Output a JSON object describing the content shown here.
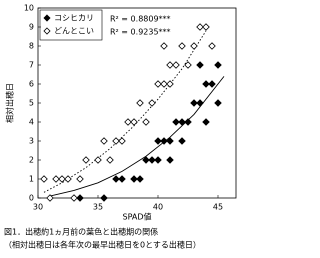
{
  "chart_data": {
    "type": "scatter",
    "y_label": "相対出穂日",
    "x_label": "SPAD値",
    "caption": [
      "図1．出穂約1ヵ月前の葉色と出穂期の関係",
      "（相対出穂日は各年次の最早出穂日を0とする出穂日）"
    ],
    "annotations": [
      "R² = 0.8809***",
      "R² = 0.9235***"
    ],
    "xlim": [
      30,
      46.5
    ],
    "xticks": [
      30,
      35,
      40,
      45
    ],
    "ylim": [
      0,
      10
    ],
    "yticks": [
      0,
      1,
      2,
      3,
      4,
      5,
      6,
      7,
      8,
      9,
      10
    ],
    "series": [
      {
        "name": "コシヒカリ",
        "color": "#000000",
        "marker": "filled-diamond",
        "x": [
          33.5,
          35.5,
          36.5,
          37,
          38,
          38.5,
          39,
          39.5,
          40,
          40.5,
          41,
          41.5,
          42,
          42,
          42.5,
          43,
          43.5,
          44,
          44,
          44.5,
          45,
          45,
          43.5,
          40,
          41
        ],
        "values": [
          0,
          0,
          1,
          1,
          1,
          1,
          2,
          2,
          3,
          3,
          3,
          4,
          3,
          4,
          4,
          5,
          5,
          4,
          6,
          6,
          5,
          7,
          7,
          2,
          2
        ],
        "fit": {
          "x": [
            31,
            33,
            35,
            37,
            39,
            41,
            43,
            45.5
          ],
          "values": [
            0.1,
            0.4,
            0.8,
            1.4,
            2.2,
            3.2,
            4.4,
            6.4
          ]
        }
      },
      {
        "name": "どんとこい",
        "color": "#000000",
        "marker": "open-diamond",
        "x": [
          30.5,
          31,
          31.5,
          32,
          32.5,
          33,
          33.5,
          34,
          35,
          35.5,
          36,
          36.5,
          37,
          37.5,
          38,
          38.5,
          39,
          39.5,
          40,
          40.5,
          41,
          41,
          41.5,
          42,
          42.5,
          43,
          43.5,
          44,
          44.5,
          40.5
        ],
        "values": [
          1,
          0,
          1,
          1,
          1,
          0,
          1,
          2,
          2,
          3,
          2,
          3,
          3,
          4,
          4,
          5,
          4,
          5,
          6,
          6,
          6,
          7,
          7,
          8,
          7,
          8,
          9,
          9,
          8,
          8
        ],
        "fit": {
          "x": [
            30.5,
            32,
            34,
            36,
            38,
            40,
            42,
            44
          ],
          "values": [
            0.3,
            0.8,
            1.6,
            2.6,
            3.8,
            5.2,
            6.8,
            8.8
          ]
        }
      }
    ]
  }
}
